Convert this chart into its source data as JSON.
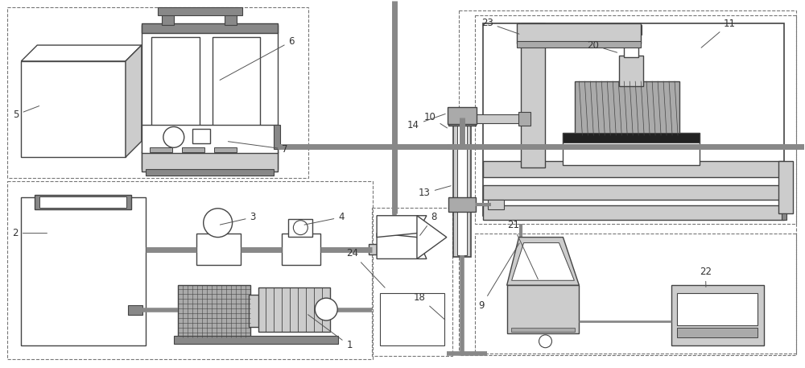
{
  "bg_color": "#ffffff",
  "lc": "#444444",
  "dc": "#777777",
  "figsize": [
    10.0,
    4.57
  ],
  "dpi": 100,
  "gray1": "#cccccc",
  "gray2": "#aaaaaa",
  "gray3": "#888888",
  "gray4": "#666666"
}
